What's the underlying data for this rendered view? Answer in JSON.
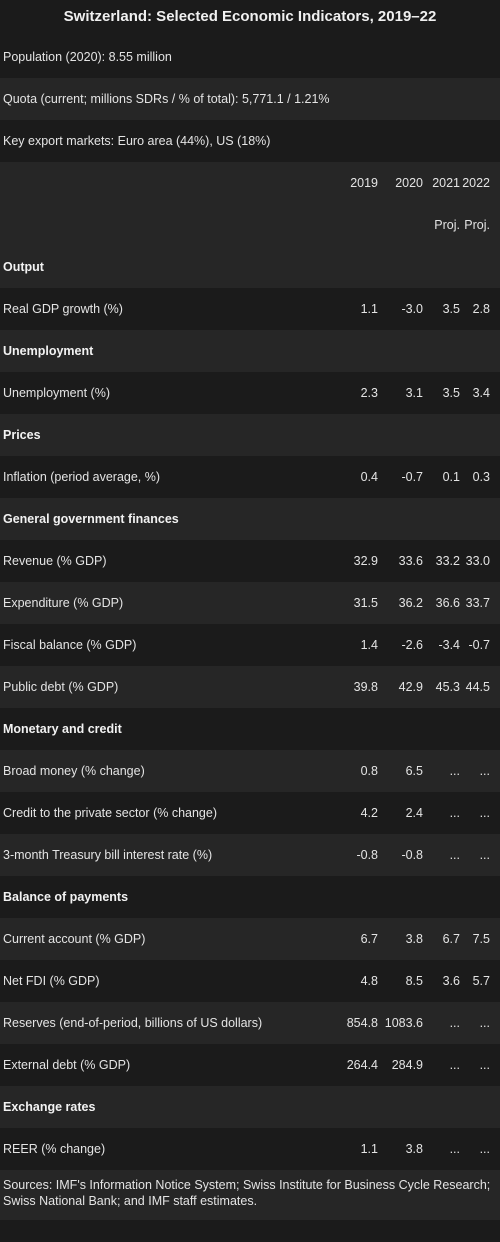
{
  "title": "Switzerland: Selected Economic Indicators, 2019–22",
  "meta": [
    "Population (2020): 8.55 million",
    "Quota (current; millions SDRs / % of total): 5,771.1 / 1.21%",
    "Key export markets: Euro area (44%), US (18%)"
  ],
  "years": [
    "2019",
    "2020",
    "2021",
    "2022"
  ],
  "proj": [
    "",
    "",
    "Proj.",
    "Proj."
  ],
  "rows": [
    {
      "label": "Output",
      "header": true,
      "v": [
        "",
        "",
        "",
        ""
      ]
    },
    {
      "label": "Real GDP growth (%)",
      "v": [
        "1.1",
        "-3.0",
        "3.5",
        "2.8"
      ]
    },
    {
      "label": "Unemployment",
      "header": true,
      "v": [
        "",
        "",
        "",
        ""
      ]
    },
    {
      "label": "Unemployment (%)",
      "v": [
        "2.3",
        "3.1",
        "3.5",
        "3.4"
      ]
    },
    {
      "label": "Prices",
      "header": true,
      "v": [
        "",
        "",
        "",
        ""
      ]
    },
    {
      "label": "Inflation (period average, %)",
      "v": [
        "0.4",
        "-0.7",
        "0.1",
        "0.3"
      ]
    },
    {
      "label": "General government finances",
      "header": true,
      "v": [
        "",
        "",
        "",
        ""
      ]
    },
    {
      "label": "Revenue (% GDP)",
      "v": [
        "32.9",
        "33.6",
        "33.2",
        "33.0"
      ]
    },
    {
      "label": "Expenditure (% GDP)",
      "v": [
        "31.5",
        "36.2",
        "36.6",
        "33.7"
      ]
    },
    {
      "label": "Fiscal balance (% GDP)",
      "v": [
        "1.4",
        "-2.6",
        "-3.4",
        "-0.7"
      ]
    },
    {
      "label": "Public debt (% GDP)",
      "v": [
        "39.8",
        "42.9",
        "45.3",
        "44.5"
      ]
    },
    {
      "label": "Monetary and credit",
      "header": true,
      "v": [
        "",
        "",
        "",
        ""
      ]
    },
    {
      "label": "Broad money (% change)",
      "v": [
        "0.8",
        "6.5",
        "...",
        "..."
      ]
    },
    {
      "label": "Credit to the private sector (% change)",
      "v": [
        "4.2",
        "2.4",
        "...",
        "..."
      ]
    },
    {
      "label": "3-month Treasury bill interest rate (%)",
      "v": [
        "-0.8",
        "-0.8",
        "...",
        "..."
      ]
    },
    {
      "label": "Balance of payments",
      "header": true,
      "v": [
        "",
        "",
        "",
        ""
      ]
    },
    {
      "label": "Current account (% GDP)",
      "v": [
        "6.7",
        "3.8",
        "6.7",
        "7.5"
      ]
    },
    {
      "label": "Net FDI (% GDP)",
      "v": [
        "4.8",
        "8.5",
        "3.6",
        "5.7"
      ]
    },
    {
      "label": "Reserves (end-of-period, billions of US dollars)",
      "v": [
        "854.8",
        "1083.6",
        "...",
        "..."
      ]
    },
    {
      "label": "External debt (% GDP)",
      "v": [
        "264.4",
        "284.9",
        "...",
        "..."
      ]
    },
    {
      "label": "Exchange rates",
      "header": true,
      "v": [
        "",
        "",
        "",
        ""
      ]
    },
    {
      "label": "REER (% change)",
      "v": [
        "1.1",
        "3.8",
        "...",
        "..."
      ]
    }
  ],
  "sources": "Sources: IMF's Information Notice System; Swiss Institute for Business Cycle Research; Swiss National Bank; and IMF staff estimates."
}
